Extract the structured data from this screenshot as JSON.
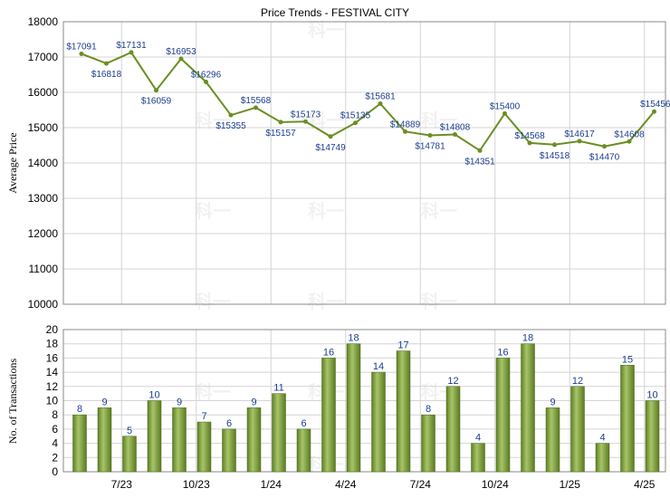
{
  "watermark": "科一",
  "chart_data": [
    {
      "type": "line",
      "title": "Price Trends - FESTIVAL CITY",
      "ylabel": "Average Price",
      "ylim": [
        10000,
        18000
      ],
      "yticks": [
        10000,
        11000,
        12000,
        13000,
        14000,
        15000,
        16000,
        17000,
        18000
      ],
      "grid": true,
      "values": [
        17091,
        16818,
        17131,
        16059,
        16953,
        16296,
        15355,
        15568,
        15157,
        15173,
        14749,
        15135,
        15681,
        14889,
        14781,
        14808,
        14351,
        15400,
        14568,
        14518,
        14617,
        14470,
        14608,
        15456
      ],
      "labels": [
        "$17091",
        "$16818",
        "$17131",
        "$16059",
        "$16953",
        "$16296",
        "$15355",
        "$15568",
        "$15157",
        "$15173",
        "$14749",
        "$15135",
        "$15681",
        "$14889",
        "$14781",
        "$14808",
        "$14351",
        "$15400",
        "$14568",
        "$14518",
        "$14617",
        "$14470",
        "$14608",
        "$15456"
      ],
      "line_color": "#6b8e23"
    },
    {
      "type": "bar",
      "ylabel": "No. of Transactions",
      "ylim": [
        0,
        20
      ],
      "yticks": [
        0,
        2,
        4,
        6,
        8,
        10,
        12,
        14,
        16,
        18,
        20
      ],
      "grid": true,
      "values": [
        8,
        9,
        5,
        10,
        9,
        7,
        6,
        9,
        11,
        6,
        16,
        18,
        14,
        17,
        8,
        12,
        4,
        16,
        18,
        9,
        12,
        4,
        15,
        10
      ],
      "x_tick_labels": [
        "7/23",
        "10/23",
        "1/24",
        "4/24",
        "7/24",
        "10/24",
        "1/25",
        "4/25"
      ],
      "bar_color": "#7a9a3a"
    }
  ]
}
